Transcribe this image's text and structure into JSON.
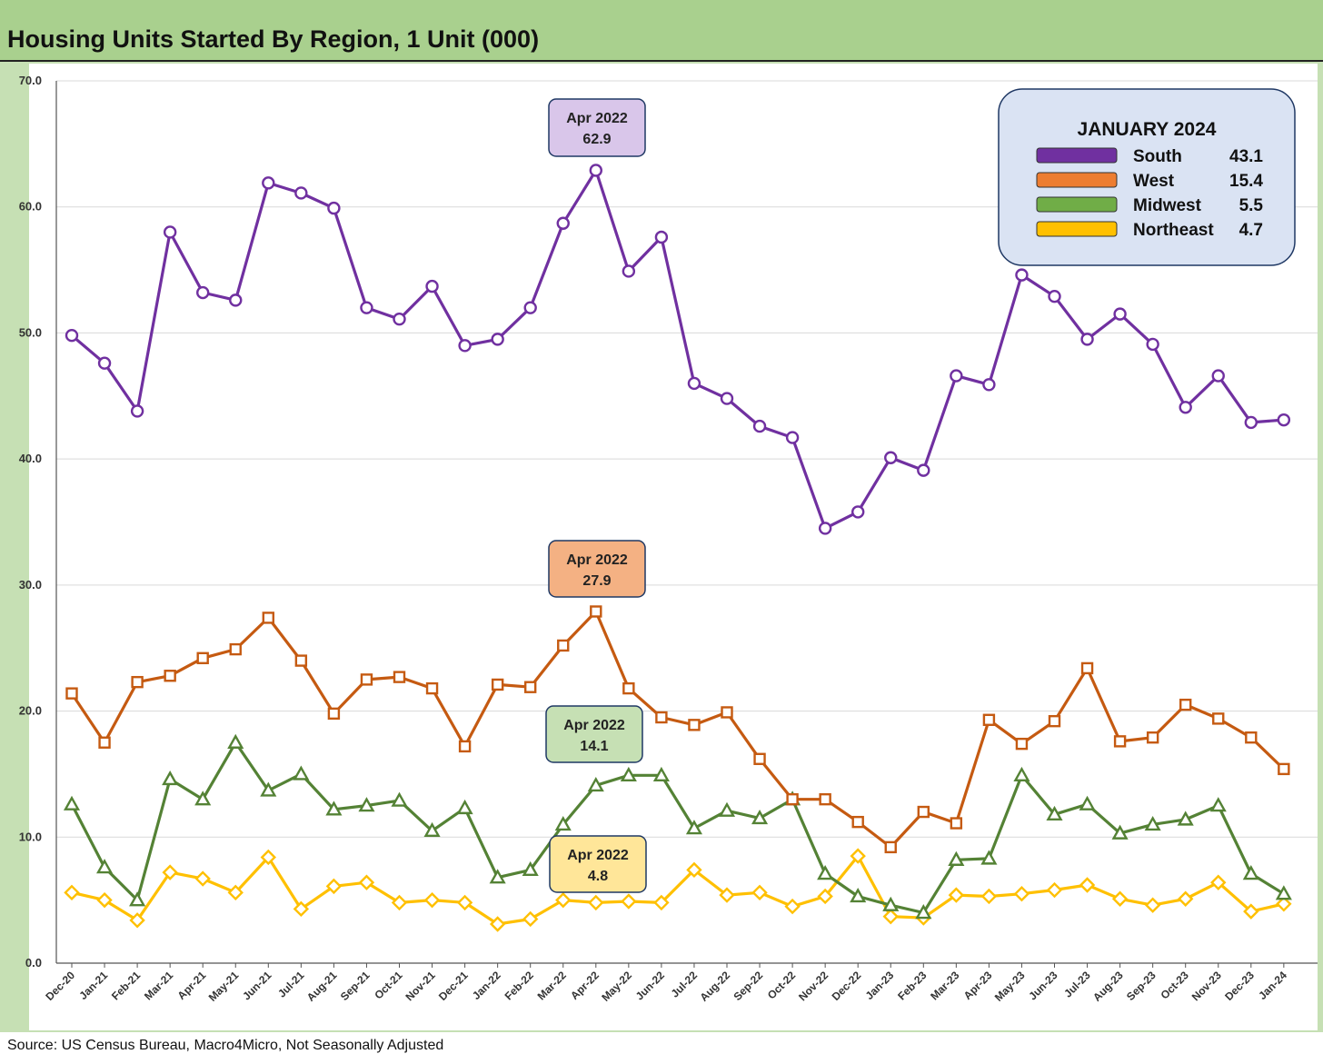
{
  "title": "Housing Units Started By Region, 1 Unit (000)",
  "source": "Source: US Census Bureau, Macro4Micro, Not Seasonally Adjusted",
  "chart_data": {
    "type": "line",
    "ylim": [
      0,
      70
    ],
    "yticks": [
      "0.0",
      "10.0",
      "20.0",
      "30.0",
      "40.0",
      "50.0",
      "60.0",
      "70.0"
    ],
    "grid": true,
    "categories": [
      "Dec-20",
      "Jan-21",
      "Feb-21",
      "Mar-21",
      "Apr-21",
      "May-21",
      "Jun-21",
      "Jul-21",
      "Aug-21",
      "Sep-21",
      "Oct-21",
      "Nov-21",
      "Dec-21",
      "Jan-22",
      "Feb-22",
      "Mar-22",
      "Apr-22",
      "May-22",
      "Jun-22",
      "Jul-22",
      "Aug-22",
      "Sep-22",
      "Oct-22",
      "Nov-22",
      "Dec-22",
      "Jan-23",
      "Feb-23",
      "Mar-23",
      "Apr-23",
      "May-23",
      "Jun-23",
      "Jul-23",
      "Aug-23",
      "Sep-23",
      "Oct-23",
      "Nov-23",
      "Dec-23",
      "Jan-24"
    ],
    "series": [
      {
        "name": "South",
        "color": "#7030a0",
        "marker": "circle",
        "values": [
          49.8,
          47.6,
          43.8,
          58.0,
          53.2,
          52.6,
          61.9,
          61.1,
          59.9,
          52.0,
          51.1,
          53.7,
          49.0,
          49.5,
          52.0,
          58.7,
          62.9,
          54.9,
          57.6,
          46.0,
          44.8,
          42.6,
          41.7,
          34.5,
          35.8,
          40.1,
          39.1,
          46.6,
          45.9,
          54.6,
          52.9,
          49.5,
          51.5,
          49.1,
          44.1,
          46.6,
          42.9,
          43.1
        ]
      },
      {
        "name": "West",
        "color": "#c55a11",
        "marker": "square",
        "values": [
          21.4,
          17.5,
          22.3,
          22.8,
          24.2,
          24.9,
          27.4,
          24.0,
          19.8,
          22.5,
          22.7,
          21.8,
          17.2,
          22.1,
          21.9,
          25.2,
          27.9,
          21.8,
          19.5,
          18.9,
          19.9,
          16.2,
          13.0,
          13.0,
          11.2,
          9.2,
          12.0,
          11.1,
          19.3,
          17.4,
          19.2,
          23.4,
          17.6,
          17.9,
          20.5,
          19.4,
          17.9,
          15.4
        ]
      },
      {
        "name": "Midwest",
        "color": "#548235",
        "marker": "triangle",
        "values": [
          12.6,
          7.6,
          5.0,
          14.6,
          13.0,
          17.5,
          13.7,
          15.0,
          12.2,
          12.5,
          12.9,
          10.5,
          12.3,
          6.8,
          7.4,
          11.0,
          14.1,
          14.9,
          14.9,
          10.7,
          12.1,
          11.5,
          13.0,
          7.1,
          5.3,
          4.6,
          4.0,
          8.2,
          8.3,
          14.9,
          11.8,
          12.6,
          10.3,
          11.0,
          11.4,
          12.5,
          7.1,
          5.5
        ]
      },
      {
        "name": "Northeast",
        "color": "#ffc000",
        "marker": "diamond",
        "values": [
          5.6,
          5.0,
          3.4,
          7.2,
          6.7,
          5.6,
          8.4,
          4.3,
          6.1,
          6.4,
          4.8,
          5.0,
          4.8,
          3.1,
          3.5,
          5.0,
          4.8,
          4.9,
          4.8,
          7.4,
          5.4,
          5.6,
          4.5,
          5.3,
          8.5,
          3.7,
          3.6,
          5.4,
          5.3,
          5.5,
          5.8,
          6.2,
          5.1,
          4.6,
          5.1,
          6.4,
          4.1,
          4.7
        ]
      }
    ],
    "callouts": [
      {
        "series": "South",
        "date": "Apr 2022",
        "value": "62.9",
        "fill": "#d9c6ea"
      },
      {
        "series": "West",
        "date": "Apr 2022",
        "value": "27.9",
        "fill": "#f4b183"
      },
      {
        "series": "Midwest",
        "date": "Apr 2022",
        "value": "14.1",
        "fill": "#c6e0b4"
      },
      {
        "series": "Northeast",
        "date": "Apr 2022",
        "value": "4.8",
        "fill": "#ffe699"
      }
    ],
    "legend": {
      "title": "JANUARY 2024",
      "placement": "top-right",
      "entries": [
        {
          "name": "South",
          "value": "43.1",
          "color": "#7030a0"
        },
        {
          "name": "West",
          "value": "15.4",
          "color": "#ed7d31"
        },
        {
          "name": "Midwest",
          "value": "5.5",
          "color": "#70ad47"
        },
        {
          "name": "Northeast",
          "value": "4.7",
          "color": "#ffc000"
        }
      ]
    }
  }
}
